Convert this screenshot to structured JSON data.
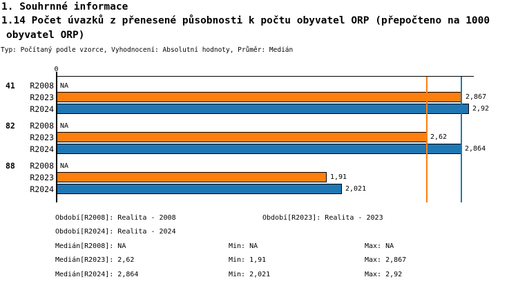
{
  "header": {
    "section_title": "1. Souhrnné informace",
    "indicator_title_line1": "1.14 Počet úvazků z přenesené působnosti k počtu obyvatel ORP (přepočteno na 1000",
    "indicator_title_line2": "obyvatel ORP)",
    "meta_line": "Typ: Počítaný podle vzorce, Vyhodnocení: Absolutní hodnoty, Průměr: Medián"
  },
  "chart_data": {
    "type": "bar",
    "orientation": "horizontal",
    "title": "1.14 Počet úvazků z přenesené působnosti k počtu obyvatel ORP (přepočteno na 1000 obyvatel ORP)",
    "axis": {
      "zero_label": "0",
      "xlim": [
        0,
        2.95
      ],
      "grid": false
    },
    "colors": {
      "R2008": null,
      "R2023": "#ff7f0e",
      "R2024": "#1f77b4"
    },
    "groups": [
      {
        "label": "41",
        "bars": [
          {
            "series": "R2008",
            "value": null,
            "value_label": "NA"
          },
          {
            "series": "R2023",
            "value": 2.867,
            "value_label": "2,867",
            "color": "#ff7f0e"
          },
          {
            "series": "R2024",
            "value": 2.92,
            "value_label": "2,92",
            "color": "#1f77b4"
          }
        ]
      },
      {
        "label": "82",
        "bars": [
          {
            "series": "R2008",
            "value": null,
            "value_label": "NA"
          },
          {
            "series": "R2023",
            "value": 2.62,
            "value_label": "2,62",
            "color": "#ff7f0e"
          },
          {
            "series": "R2024",
            "value": 2.864,
            "value_label": "2,864",
            "color": "#1f77b4"
          }
        ]
      },
      {
        "label": "88",
        "bars": [
          {
            "series": "R2008",
            "value": null,
            "value_label": "NA"
          },
          {
            "series": "R2023",
            "value": 1.91,
            "value_label": "1,91",
            "color": "#ff7f0e"
          },
          {
            "series": "R2024",
            "value": 2.021,
            "value_label": "2,021",
            "color": "#1f77b4"
          }
        ]
      }
    ],
    "reference_lines": [
      {
        "name": "median-r2023",
        "value": 2.62,
        "color": "#ff7f0e"
      },
      {
        "name": "median-r2024",
        "value": 2.864,
        "color": "#1f77b4"
      }
    ]
  },
  "legend": {
    "periods": [
      {
        "left": "Období[R2008]: Realita - 2008",
        "right": "Období[R2023]: Realita - 2023"
      },
      {
        "left": "Období[R2024]: Realita - 2024",
        "right": ""
      }
    ],
    "stats": [
      {
        "median": "Medián[R2008]: NA",
        "min": "Min: NA",
        "max": "Max: NA"
      },
      {
        "median": "Medián[R2023]: 2,62",
        "min": "Min: 1,91",
        "max": "Max: 2,867"
      },
      {
        "median": "Medián[R2024]: 2,864",
        "min": "Min: 2,021",
        "max": "Max: 2,92"
      }
    ]
  }
}
